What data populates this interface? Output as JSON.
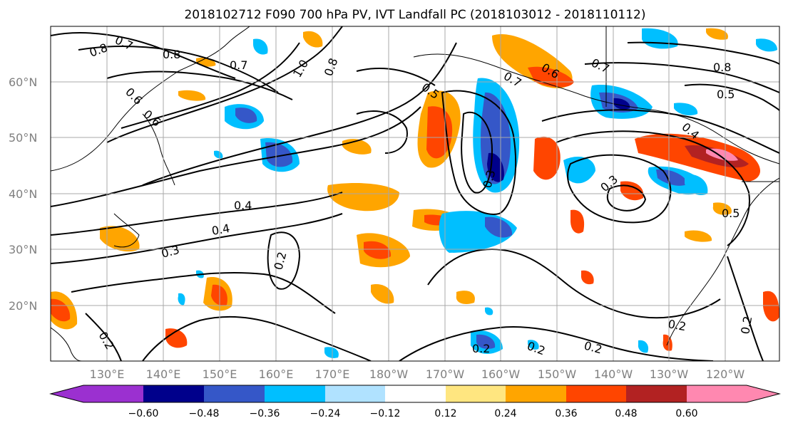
{
  "title": "2018102712 F090 700 hPa PV, IVT Landfall PC (2018103012 - 2018110112)",
  "lat_labels": [
    "60°N",
    "50°N",
    "40°N",
    "30°N",
    "20°N"
  ],
  "lon_labels": [
    "130°E",
    "140°E",
    "150°E",
    "160°E",
    "170°E",
    "180°W",
    "170°W",
    "160°W",
    "150°W",
    "140°W",
    "130°W",
    "120°W"
  ],
  "colorbar": {
    "ticks": [
      "−0.60",
      "−0.48",
      "−0.36",
      "−0.24",
      "−0.12",
      "0.12",
      "0.24",
      "0.36",
      "0.48",
      "0.60"
    ],
    "colors": [
      "#9b30d0",
      "#00008b",
      "#3557c8",
      "#00bfff",
      "#b0e2ff",
      "#ffffff",
      "#ffe680",
      "#ffa500",
      "#ff4500",
      "#b22222",
      "#ff88b0"
    ]
  },
  "contour_labels": [
    "0.8",
    "0.7",
    "0.8",
    "0.7",
    "0.6",
    "0.6",
    "1.0",
    "0.8",
    "0.5",
    "0.7",
    "0.6",
    "0.7",
    "0.8",
    "0.5",
    "0.4",
    "0.4",
    "0.4",
    "0.3",
    "0.3",
    "0.5",
    "0.2",
    "0.2",
    "0.2",
    "0.2",
    "0.2",
    "0.2",
    "0.3",
    "0.2"
  ]
}
